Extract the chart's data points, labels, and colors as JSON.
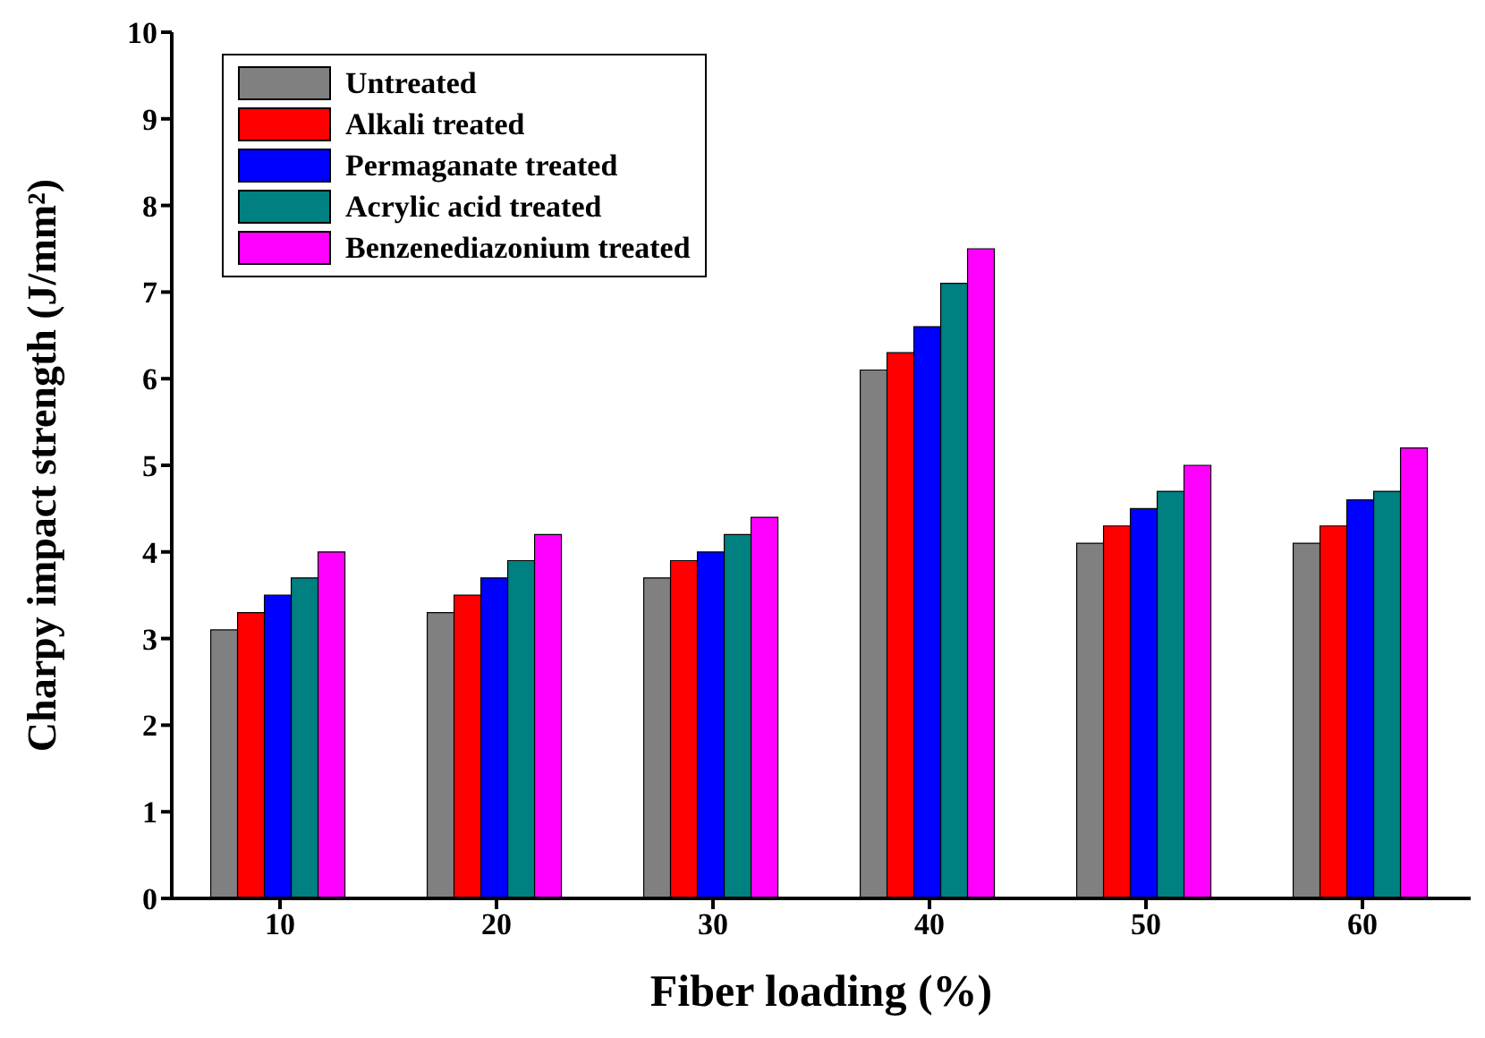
{
  "chart_data": {
    "type": "bar",
    "xlabel": "Fiber loading (%)",
    "ylabel": "Charpy impact strength (J/mm²)",
    "categories": [
      "10",
      "20",
      "30",
      "40",
      "50",
      "60"
    ],
    "series": [
      {
        "name": "Untreated",
        "color": "#808080",
        "values": [
          3.1,
          3.3,
          3.7,
          6.1,
          4.1,
          4.1
        ]
      },
      {
        "name": "Alkali treated",
        "color": "#ff0000",
        "values": [
          3.3,
          3.5,
          3.9,
          6.3,
          4.3,
          4.3
        ]
      },
      {
        "name": "Permaganate treated",
        "color": "#0000ff",
        "values": [
          3.5,
          3.7,
          4.0,
          6.6,
          4.5,
          4.6
        ]
      },
      {
        "name": "Acrylic acid treated",
        "color": "#008080",
        "values": [
          3.7,
          3.9,
          4.2,
          7.1,
          4.7,
          4.7
        ]
      },
      {
        "name": "Benzenediazonium treated",
        "color": "#ff00ff",
        "values": [
          4.0,
          4.2,
          4.4,
          7.5,
          5.0,
          5.2
        ]
      }
    ],
    "ylim": [
      0,
      10
    ],
    "yticks": [
      0,
      1,
      2,
      3,
      4,
      5,
      6,
      7,
      8,
      9,
      10
    ],
    "grid": false,
    "legend": "top left"
  }
}
